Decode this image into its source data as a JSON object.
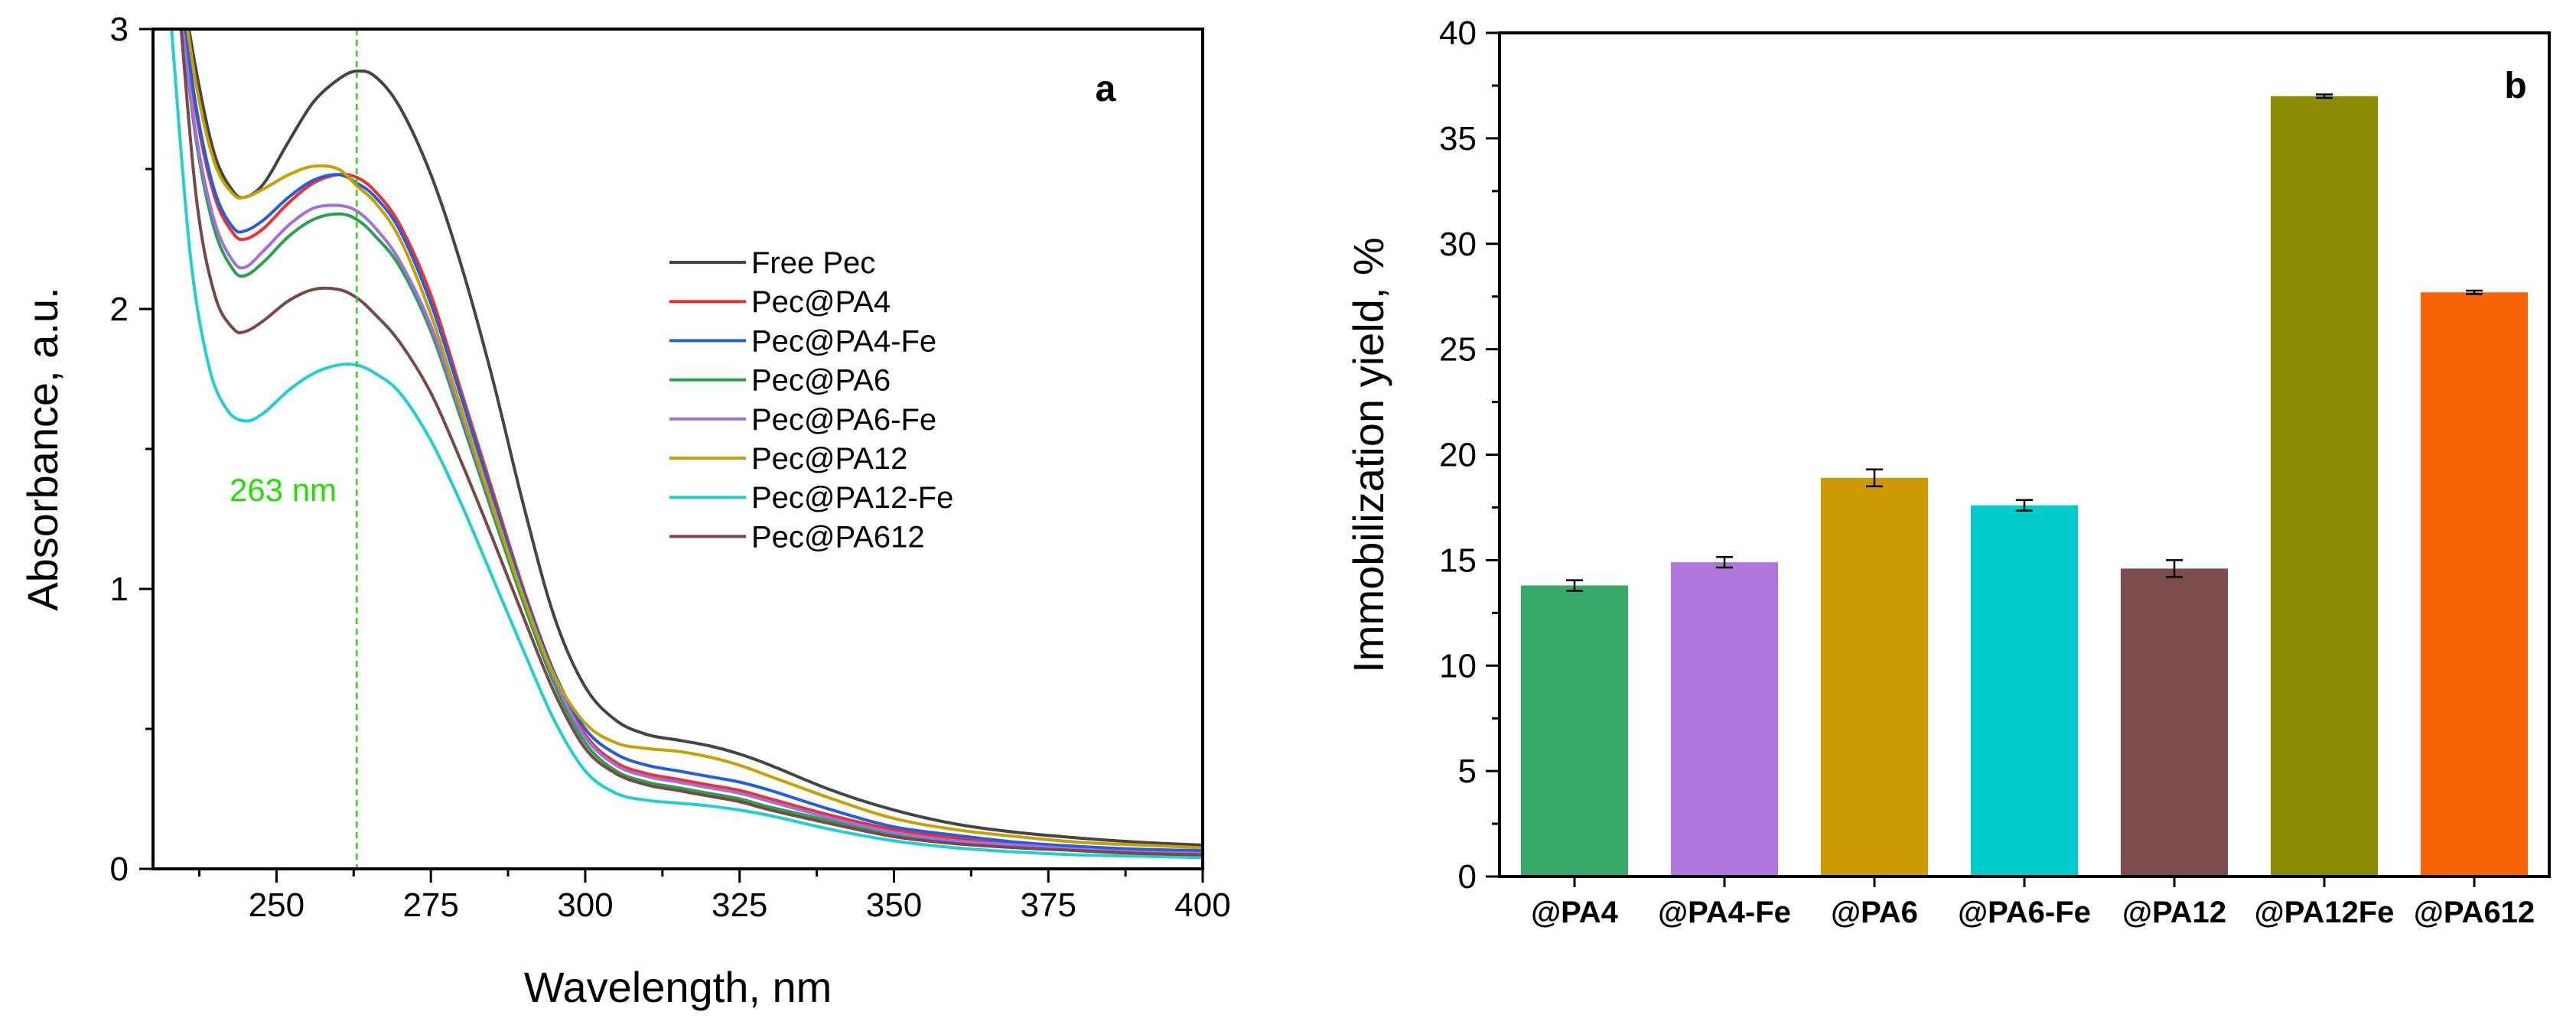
{
  "figure": {
    "panel_a_tag": "a",
    "panel_b_tag": "b"
  },
  "chart_data": [
    {
      "type": "line",
      "xlabel": "Wavelength, nm",
      "ylabel": "Absorbance, a.u.",
      "xlim": [
        230,
        400
      ],
      "ylim": [
        0,
        3
      ],
      "xticks": [
        "250",
        "275",
        "300",
        "325",
        "350",
        "375",
        "400"
      ],
      "yticks": [
        "0",
        "1",
        "2",
        "3"
      ],
      "grid": false,
      "legend": "center-right",
      "annotation": {
        "text": "263 nm",
        "x": 263,
        "color": "#22e000"
      },
      "series": [
        {
          "name": "Free Pec",
          "color": "#444444",
          "x": [
            234,
            237,
            240,
            243,
            245,
            248,
            252,
            256,
            260,
            263,
            266,
            270,
            275,
            280,
            285,
            290,
            295,
            300,
            305,
            310,
            315,
            320,
            325,
            330,
            340,
            350,
            360,
            370,
            380,
            390,
            400
          ],
          "y": [
            3.25,
            2.85,
            2.55,
            2.42,
            2.4,
            2.45,
            2.6,
            2.74,
            2.82,
            2.85,
            2.83,
            2.72,
            2.48,
            2.15,
            1.75,
            1.3,
            0.9,
            0.65,
            0.53,
            0.48,
            0.46,
            0.44,
            0.41,
            0.37,
            0.28,
            0.21,
            0.16,
            0.13,
            0.11,
            0.095,
            0.085
          ]
        },
        {
          "name": "Pec@PA4",
          "color": "#f03030",
          "x": [
            234,
            237,
            240,
            243,
            245,
            248,
            252,
            256,
            260,
            263,
            266,
            270,
            275,
            280,
            285,
            290,
            295,
            300,
            305,
            310,
            315,
            320,
            325,
            330,
            340,
            350,
            360,
            370,
            380,
            390,
            400
          ],
          "y": [
            3.2,
            2.7,
            2.4,
            2.27,
            2.25,
            2.29,
            2.38,
            2.45,
            2.48,
            2.47,
            2.42,
            2.3,
            2.05,
            1.7,
            1.35,
            1.0,
            0.7,
            0.48,
            0.38,
            0.34,
            0.32,
            0.3,
            0.28,
            0.25,
            0.19,
            0.14,
            0.11,
            0.09,
            0.075,
            0.065,
            0.06
          ]
        },
        {
          "name": "Pec@PA4-Fe",
          "color": "#2060e0",
          "x": [
            234,
            237,
            240,
            243,
            245,
            248,
            252,
            256,
            260,
            263,
            266,
            270,
            275,
            280,
            285,
            290,
            295,
            300,
            305,
            310,
            315,
            320,
            325,
            330,
            340,
            350,
            360,
            370,
            380,
            390,
            400
          ],
          "y": [
            3.2,
            2.72,
            2.42,
            2.29,
            2.28,
            2.32,
            2.4,
            2.46,
            2.48,
            2.45,
            2.4,
            2.28,
            2.02,
            1.68,
            1.33,
            0.99,
            0.7,
            0.5,
            0.41,
            0.37,
            0.35,
            0.33,
            0.31,
            0.28,
            0.21,
            0.15,
            0.12,
            0.095,
            0.08,
            0.07,
            0.065
          ]
        },
        {
          "name": "Pec@PA6",
          "color": "#2aa050",
          "x": [
            234,
            237,
            240,
            243,
            245,
            248,
            252,
            256,
            260,
            263,
            266,
            270,
            275,
            280,
            285,
            290,
            295,
            300,
            305,
            310,
            315,
            320,
            325,
            330,
            340,
            350,
            360,
            370,
            380,
            390,
            400
          ],
          "y": [
            3.15,
            2.6,
            2.28,
            2.14,
            2.12,
            2.17,
            2.26,
            2.32,
            2.34,
            2.32,
            2.26,
            2.15,
            1.92,
            1.6,
            1.27,
            0.95,
            0.66,
            0.45,
            0.35,
            0.31,
            0.29,
            0.27,
            0.25,
            0.22,
            0.17,
            0.12,
            0.095,
            0.08,
            0.065,
            0.055,
            0.05
          ]
        },
        {
          "name": "Pec@PA6-Fe",
          "color": "#a070e0",
          "x": [
            234,
            237,
            240,
            243,
            245,
            248,
            252,
            256,
            260,
            263,
            266,
            270,
            275,
            280,
            285,
            290,
            295,
            300,
            305,
            310,
            315,
            320,
            325,
            330,
            340,
            350,
            360,
            370,
            380,
            390,
            400
          ],
          "y": [
            3.15,
            2.62,
            2.31,
            2.17,
            2.15,
            2.21,
            2.3,
            2.36,
            2.37,
            2.35,
            2.29,
            2.17,
            1.94,
            1.62,
            1.29,
            0.97,
            0.68,
            0.47,
            0.37,
            0.33,
            0.31,
            0.29,
            0.27,
            0.24,
            0.18,
            0.13,
            0.1,
            0.085,
            0.07,
            0.06,
            0.055
          ]
        },
        {
          "name": "Pec@PA12",
          "color": "#c8a000",
          "x": [
            234,
            237,
            240,
            243,
            245,
            248,
            252,
            256,
            260,
            263,
            266,
            270,
            275,
            280,
            285,
            290,
            295,
            300,
            305,
            310,
            315,
            320,
            325,
            330,
            340,
            350,
            360,
            370,
            380,
            390,
            400
          ],
          "y": [
            3.25,
            2.8,
            2.52,
            2.41,
            2.4,
            2.43,
            2.48,
            2.51,
            2.5,
            2.44,
            2.38,
            2.25,
            1.98,
            1.64,
            1.3,
            0.97,
            0.69,
            0.52,
            0.45,
            0.43,
            0.42,
            0.4,
            0.37,
            0.33,
            0.25,
            0.18,
            0.14,
            0.115,
            0.095,
            0.085,
            0.075
          ]
        },
        {
          "name": "Pec@PA12-Fe",
          "color": "#20d0d0",
          "x": [
            233,
            236,
            239,
            242,
            245,
            248,
            252,
            256,
            260,
            263,
            266,
            270,
            275,
            280,
            285,
            290,
            295,
            300,
            305,
            310,
            315,
            320,
            325,
            330,
            340,
            350,
            360,
            370,
            380,
            390,
            400
          ],
          "y": [
            3.0,
            2.2,
            1.8,
            1.64,
            1.6,
            1.63,
            1.71,
            1.77,
            1.8,
            1.8,
            1.77,
            1.7,
            1.53,
            1.3,
            1.04,
            0.78,
            0.53,
            0.35,
            0.27,
            0.245,
            0.235,
            0.225,
            0.21,
            0.19,
            0.14,
            0.1,
            0.075,
            0.06,
            0.05,
            0.045,
            0.04
          ]
        },
        {
          "name": "Pec@PA612",
          "color": "#7a4848",
          "x": [
            234,
            237,
            240,
            243,
            245,
            248,
            252,
            256,
            260,
            263,
            266,
            270,
            275,
            280,
            285,
            290,
            295,
            300,
            305,
            310,
            315,
            320,
            325,
            330,
            340,
            350,
            360,
            370,
            380,
            390,
            400
          ],
          "y": [
            3.15,
            2.4,
            2.05,
            1.93,
            1.92,
            1.96,
            2.03,
            2.07,
            2.07,
            2.04,
            1.98,
            1.88,
            1.7,
            1.45,
            1.18,
            0.9,
            0.63,
            0.43,
            0.34,
            0.3,
            0.28,
            0.26,
            0.24,
            0.21,
            0.16,
            0.115,
            0.09,
            0.075,
            0.065,
            0.055,
            0.05
          ]
        }
      ]
    },
    {
      "type": "bar",
      "xlabel": "",
      "ylabel": "Immobilization yield, %",
      "ylim": [
        0,
        40
      ],
      "yticks": [
        "0",
        "5",
        "10",
        "15",
        "20",
        "25",
        "30",
        "35",
        "40"
      ],
      "grid": false,
      "categories": [
        "@PA4",
        "@PA4-Fe",
        "@PA6",
        "@PA6-Fe",
        "@PA12",
        "@PA12Fe",
        "@PA612"
      ],
      "values": [
        13.8,
        14.9,
        18.9,
        17.6,
        14.6,
        37.0,
        27.7
      ],
      "errors": [
        0.25,
        0.25,
        0.4,
        0.25,
        0.4,
        0.08,
        0.08
      ],
      "colors": [
        "#36a96a",
        "#b076de",
        "#cc9a00",
        "#00cccc",
        "#7a4c4c",
        "#8b8b00",
        "#f76407"
      ]
    }
  ]
}
